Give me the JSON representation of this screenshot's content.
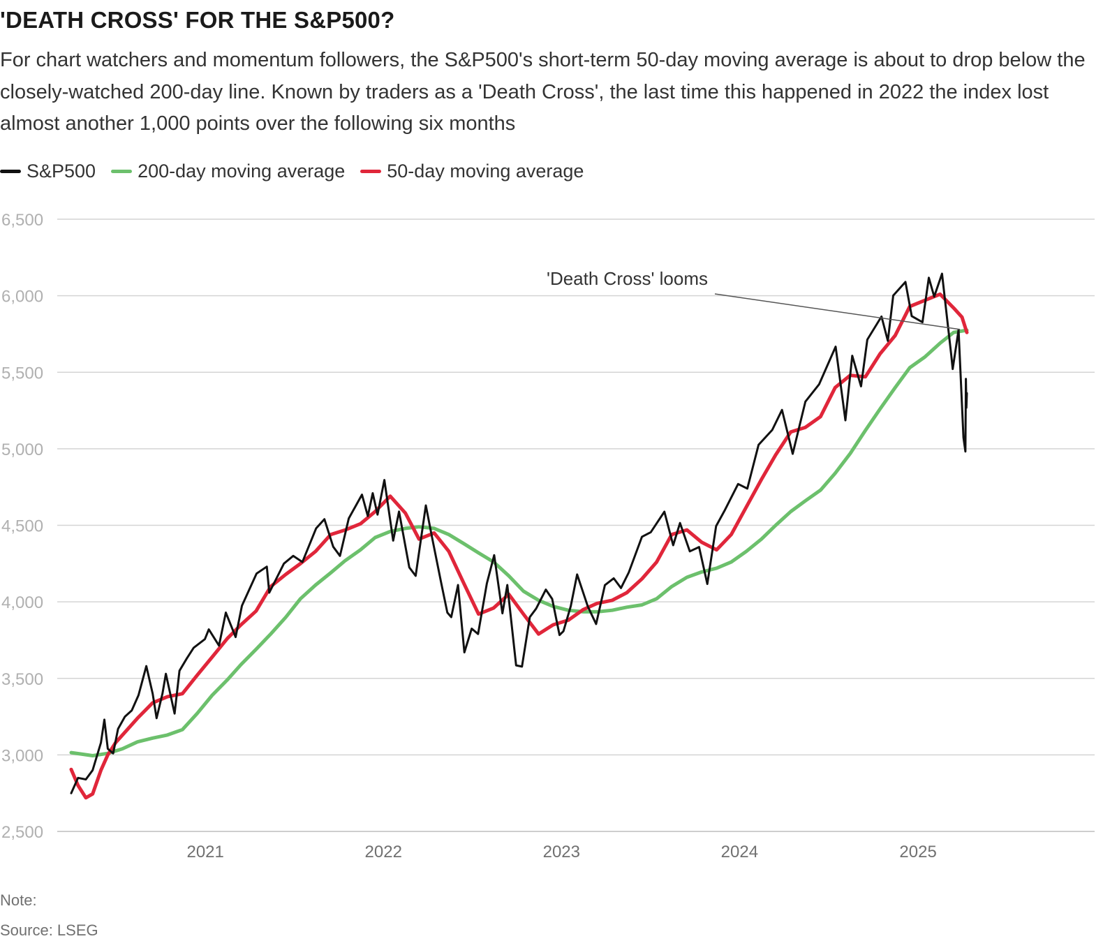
{
  "title": "'DEATH CROSS' FOR THE S&P500?",
  "subtitle": "For chart watchers and momentum followers, the S&P500's short-term 50-day moving average is about to drop below the closely-watched 200-day line. Known by traders as a 'Death Cross', the last time this happened in 2022 the index lost almost another 1,000 points over the following six months",
  "legend": [
    {
      "label": "S&P500",
      "color": "#111111"
    },
    {
      "label": "200-day moving average",
      "color": "#6cc06c"
    },
    {
      "label": "50-day moving average",
      "color": "#e0263a"
    }
  ],
  "note": "Note:",
  "source": "Source: LSEG",
  "chart_data": {
    "type": "line",
    "x_range": [
      "2020-04-01",
      "2025-12-31"
    ],
    "ylim": [
      2500,
      6500
    ],
    "y_ticks": [
      2500,
      3000,
      3500,
      4000,
      4500,
      5000,
      5500,
      6000,
      6500
    ],
    "y_tick_labels": [
      "2,500",
      "3,000",
      "3,500",
      "4,000",
      "4,500",
      "5,000",
      "5,500",
      "6,000",
      "6,500"
    ],
    "x_ticks": [
      "2021-01-01",
      "2022-01-01",
      "2023-01-01",
      "2024-01-01",
      "2025-01-01"
    ],
    "x_tick_labels": [
      "2021",
      "2022",
      "2023",
      "2024",
      "2025"
    ],
    "grid": "horizontal",
    "legend_position": "top-left",
    "annotation": {
      "text": "'Death Cross' looms",
      "points_to": {
        "x": "2025-03-28",
        "y": 5780
      }
    },
    "series": [
      {
        "name": "S&P500",
        "color": "#111111",
        "points": [
          [
            "2020-04-01",
            2750
          ],
          [
            "2020-04-15",
            2850
          ],
          [
            "2020-05-01",
            2840
          ],
          [
            "2020-05-15",
            2900
          ],
          [
            "2020-06-01",
            3080
          ],
          [
            "2020-06-08",
            3230
          ],
          [
            "2020-06-15",
            3040
          ],
          [
            "2020-06-26",
            3010
          ],
          [
            "2020-07-06",
            3170
          ],
          [
            "2020-07-20",
            3250
          ],
          [
            "2020-08-03",
            3290
          ],
          [
            "2020-08-17",
            3390
          ],
          [
            "2020-09-02",
            3580
          ],
          [
            "2020-09-15",
            3400
          ],
          [
            "2020-09-23",
            3240
          ],
          [
            "2020-10-05",
            3400
          ],
          [
            "2020-10-12",
            3530
          ],
          [
            "2020-10-30",
            3270
          ],
          [
            "2020-11-09",
            3550
          ],
          [
            "2020-11-24",
            3630
          ],
          [
            "2020-12-08",
            3700
          ],
          [
            "2020-12-31",
            3756
          ],
          [
            "2021-01-08",
            3820
          ],
          [
            "2021-01-29",
            3714
          ],
          [
            "2021-02-12",
            3930
          ],
          [
            "2021-03-04",
            3770
          ],
          [
            "2021-03-17",
            3975
          ],
          [
            "2021-04-16",
            4185
          ],
          [
            "2021-05-07",
            4230
          ],
          [
            "2021-05-12",
            4060
          ],
          [
            "2021-06-11",
            4250
          ],
          [
            "2021-06-30",
            4300
          ],
          [
            "2021-07-19",
            4260
          ],
          [
            "2021-08-16",
            4480
          ],
          [
            "2021-09-02",
            4540
          ],
          [
            "2021-09-20",
            4360
          ],
          [
            "2021-10-04",
            4300
          ],
          [
            "2021-10-22",
            4545
          ],
          [
            "2021-11-18",
            4700
          ],
          [
            "2021-11-30",
            4560
          ],
          [
            "2021-12-10",
            4710
          ],
          [
            "2021-12-20",
            4570
          ],
          [
            "2022-01-03",
            4796
          ],
          [
            "2022-01-21",
            4400
          ],
          [
            "2022-02-02",
            4590
          ],
          [
            "2022-02-23",
            4225
          ],
          [
            "2022-03-08",
            4170
          ],
          [
            "2022-03-29",
            4630
          ],
          [
            "2022-04-12",
            4400
          ],
          [
            "2022-04-29",
            4130
          ],
          [
            "2022-05-12",
            3930
          ],
          [
            "2022-05-20",
            3900
          ],
          [
            "2022-06-03",
            4110
          ],
          [
            "2022-06-16",
            3670
          ],
          [
            "2022-07-01",
            3825
          ],
          [
            "2022-07-14",
            3790
          ],
          [
            "2022-08-01",
            4120
          ],
          [
            "2022-08-16",
            4305
          ],
          [
            "2022-09-02",
            3925
          ],
          [
            "2022-09-12",
            4110
          ],
          [
            "2022-09-30",
            3585
          ],
          [
            "2022-10-12",
            3577
          ],
          [
            "2022-10-28",
            3900
          ],
          [
            "2022-11-10",
            3956
          ],
          [
            "2022-11-30",
            4080
          ],
          [
            "2022-12-13",
            4019
          ],
          [
            "2022-12-28",
            3783
          ],
          [
            "2023-01-05",
            3808
          ],
          [
            "2023-01-20",
            3972
          ],
          [
            "2023-02-02",
            4179
          ],
          [
            "2023-02-24",
            3970
          ],
          [
            "2023-03-13",
            3855
          ],
          [
            "2023-03-31",
            4109
          ],
          [
            "2023-04-18",
            4154
          ],
          [
            "2023-05-03",
            4090
          ],
          [
            "2023-05-19",
            4192
          ],
          [
            "2023-06-15",
            4425
          ],
          [
            "2023-07-03",
            4455
          ],
          [
            "2023-07-31",
            4589
          ],
          [
            "2023-08-18",
            4370
          ],
          [
            "2023-09-01",
            4515
          ],
          [
            "2023-09-21",
            4330
          ],
          [
            "2023-10-10",
            4358
          ],
          [
            "2023-10-27",
            4117
          ],
          [
            "2023-11-14",
            4495
          ],
          [
            "2023-12-01",
            4594
          ],
          [
            "2023-12-29",
            4770
          ],
          [
            "2024-01-17",
            4740
          ],
          [
            "2024-02-09",
            5026
          ],
          [
            "2024-03-08",
            5123
          ],
          [
            "2024-03-28",
            5254
          ],
          [
            "2024-04-19",
            4967
          ],
          [
            "2024-05-15",
            5308
          ],
          [
            "2024-06-12",
            5421
          ],
          [
            "2024-07-16",
            5667
          ],
          [
            "2024-08-05",
            5186
          ],
          [
            "2024-08-19",
            5608
          ],
          [
            "2024-09-06",
            5408
          ],
          [
            "2024-09-19",
            5713
          ],
          [
            "2024-10-18",
            5864
          ],
          [
            "2024-10-31",
            5705
          ],
          [
            "2024-11-11",
            6001
          ],
          [
            "2024-12-06",
            6090
          ],
          [
            "2024-12-19",
            5867
          ],
          [
            "2025-01-10",
            5827
          ],
          [
            "2025-01-23",
            6118
          ],
          [
            "2025-02-03",
            5994
          ],
          [
            "2025-02-19",
            6144
          ],
          [
            "2025-03-10",
            5614
          ],
          [
            "2025-03-13",
            5521
          ],
          [
            "2025-03-25",
            5777
          ],
          [
            "2025-04-04",
            5074
          ],
          [
            "2025-04-08",
            4982
          ],
          [
            "2025-04-09",
            5457
          ],
          [
            "2025-04-10",
            5268
          ],
          [
            "2025-04-11",
            5363
          ]
        ]
      },
      {
        "name": "200-day moving average",
        "color": "#6cc06c",
        "points": [
          [
            "2020-04-01",
            3015
          ],
          [
            "2020-05-15",
            2995
          ],
          [
            "2020-06-15",
            3010
          ],
          [
            "2020-07-15",
            3040
          ],
          [
            "2020-08-15",
            3085
          ],
          [
            "2020-09-15",
            3110
          ],
          [
            "2020-10-15",
            3130
          ],
          [
            "2020-11-15",
            3165
          ],
          [
            "2020-12-15",
            3270
          ],
          [
            "2021-01-15",
            3390
          ],
          [
            "2021-02-15",
            3490
          ],
          [
            "2021-03-15",
            3590
          ],
          [
            "2021-04-15",
            3690
          ],
          [
            "2021-05-15",
            3790
          ],
          [
            "2021-06-15",
            3900
          ],
          [
            "2021-07-15",
            4020
          ],
          [
            "2021-08-15",
            4110
          ],
          [
            "2021-09-15",
            4190
          ],
          [
            "2021-10-15",
            4270
          ],
          [
            "2021-11-15",
            4340
          ],
          [
            "2021-12-15",
            4420
          ],
          [
            "2022-01-15",
            4460
          ],
          [
            "2022-02-15",
            4480
          ],
          [
            "2022-03-15",
            4490
          ],
          [
            "2022-04-15",
            4480
          ],
          [
            "2022-05-15",
            4440
          ],
          [
            "2022-06-15",
            4380
          ],
          [
            "2022-07-15",
            4320
          ],
          [
            "2022-08-15",
            4260
          ],
          [
            "2022-09-15",
            4170
          ],
          [
            "2022-10-15",
            4070
          ],
          [
            "2022-11-15",
            4010
          ],
          [
            "2022-12-15",
            3970
          ],
          [
            "2023-01-15",
            3945
          ],
          [
            "2023-02-15",
            3935
          ],
          [
            "2023-03-15",
            3935
          ],
          [
            "2023-04-15",
            3945
          ],
          [
            "2023-05-15",
            3965
          ],
          [
            "2023-06-15",
            3980
          ],
          [
            "2023-07-15",
            4020
          ],
          [
            "2023-08-15",
            4100
          ],
          [
            "2023-09-15",
            4160
          ],
          [
            "2023-10-15",
            4195
          ],
          [
            "2023-11-15",
            4220
          ],
          [
            "2023-12-15",
            4260
          ],
          [
            "2024-01-15",
            4330
          ],
          [
            "2024-02-15",
            4410
          ],
          [
            "2024-03-15",
            4500
          ],
          [
            "2024-04-15",
            4590
          ],
          [
            "2024-05-15",
            4660
          ],
          [
            "2024-06-15",
            4730
          ],
          [
            "2024-07-15",
            4840
          ],
          [
            "2024-08-15",
            4970
          ],
          [
            "2024-09-15",
            5120
          ],
          [
            "2024-10-15",
            5260
          ],
          [
            "2024-11-15",
            5400
          ],
          [
            "2024-12-15",
            5530
          ],
          [
            "2025-01-15",
            5600
          ],
          [
            "2025-02-15",
            5690
          ],
          [
            "2025-03-15",
            5760
          ],
          [
            "2025-04-11",
            5775
          ]
        ]
      },
      {
        "name": "50-day moving average",
        "color": "#e0263a",
        "points": [
          [
            "2020-04-01",
            2905
          ],
          [
            "2020-04-15",
            2800
          ],
          [
            "2020-05-01",
            2720
          ],
          [
            "2020-05-15",
            2745
          ],
          [
            "2020-06-01",
            2900
          ],
          [
            "2020-06-15",
            3000
          ],
          [
            "2020-07-01",
            3080
          ],
          [
            "2020-07-15",
            3130
          ],
          [
            "2020-08-15",
            3240
          ],
          [
            "2020-09-15",
            3340
          ],
          [
            "2020-10-15",
            3380
          ],
          [
            "2020-11-15",
            3400
          ],
          [
            "2020-12-15",
            3520
          ],
          [
            "2021-01-15",
            3640
          ],
          [
            "2021-02-15",
            3760
          ],
          [
            "2021-03-15",
            3850
          ],
          [
            "2021-04-15",
            3940
          ],
          [
            "2021-05-15",
            4100
          ],
          [
            "2021-06-15",
            4180
          ],
          [
            "2021-07-15",
            4250
          ],
          [
            "2021-08-15",
            4330
          ],
          [
            "2021-09-15",
            4440
          ],
          [
            "2021-10-15",
            4470
          ],
          [
            "2021-11-15",
            4510
          ],
          [
            "2021-12-15",
            4590
          ],
          [
            "2022-01-15",
            4690
          ],
          [
            "2022-02-15",
            4580
          ],
          [
            "2022-03-15",
            4410
          ],
          [
            "2022-04-15",
            4450
          ],
          [
            "2022-05-15",
            4330
          ],
          [
            "2022-06-15",
            4120
          ],
          [
            "2022-07-15",
            3920
          ],
          [
            "2022-08-15",
            3960
          ],
          [
            "2022-09-15",
            4050
          ],
          [
            "2022-10-15",
            3920
          ],
          [
            "2022-11-15",
            3790
          ],
          [
            "2022-12-15",
            3850
          ],
          [
            "2023-01-15",
            3880
          ],
          [
            "2023-02-15",
            3950
          ],
          [
            "2023-03-15",
            3990
          ],
          [
            "2023-04-15",
            4010
          ],
          [
            "2023-05-15",
            4060
          ],
          [
            "2023-06-15",
            4150
          ],
          [
            "2023-07-15",
            4260
          ],
          [
            "2023-08-15",
            4440
          ],
          [
            "2023-09-15",
            4470
          ],
          [
            "2023-10-15",
            4390
          ],
          [
            "2023-11-15",
            4340
          ],
          [
            "2023-12-15",
            4440
          ],
          [
            "2024-01-15",
            4620
          ],
          [
            "2024-02-15",
            4800
          ],
          [
            "2024-03-15",
            4960
          ],
          [
            "2024-04-15",
            5110
          ],
          [
            "2024-05-15",
            5140
          ],
          [
            "2024-06-15",
            5210
          ],
          [
            "2024-07-15",
            5400
          ],
          [
            "2024-08-15",
            5480
          ],
          [
            "2024-09-15",
            5470
          ],
          [
            "2024-10-15",
            5620
          ],
          [
            "2024-11-15",
            5740
          ],
          [
            "2024-12-15",
            5930
          ],
          [
            "2025-01-15",
            5970
          ],
          [
            "2025-02-15",
            6010
          ],
          [
            "2025-03-15",
            5920
          ],
          [
            "2025-04-01",
            5860
          ],
          [
            "2025-04-11",
            5760
          ]
        ]
      }
    ]
  }
}
